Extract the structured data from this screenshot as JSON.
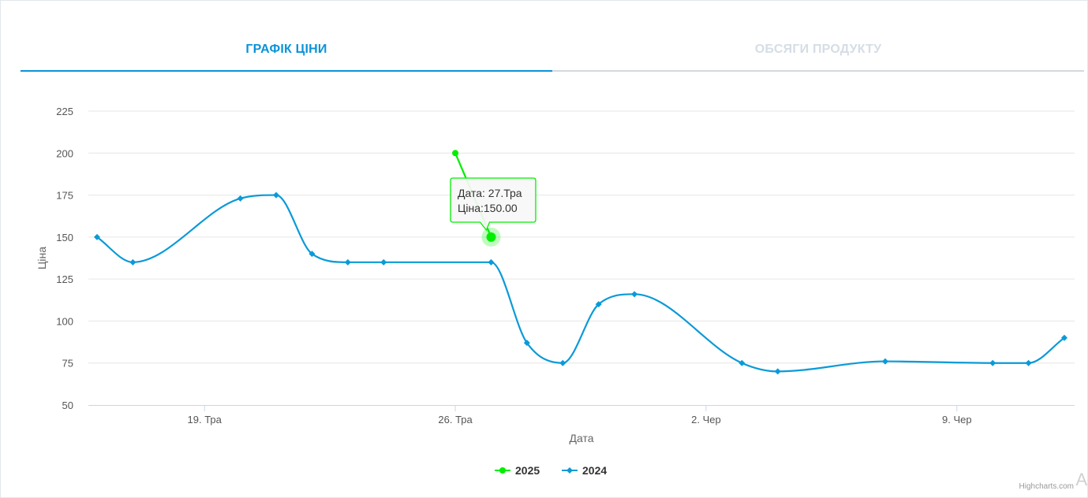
{
  "tabs": [
    {
      "label": "ГРАФІК ЦІНИ",
      "active": true
    },
    {
      "label": "ОБСЯГИ ПРОДУКТУ",
      "active": false
    }
  ],
  "credits": "Highcharts.com",
  "corner_text": "Ai",
  "chart_data": {
    "type": "line",
    "title": "",
    "xlabel": "Дата",
    "ylabel": "Ціна",
    "ylim": [
      50,
      225
    ],
    "yticks": [
      50,
      75,
      100,
      125,
      150,
      175,
      200,
      225
    ],
    "xlim": [
      "2024-05-16",
      "2024-06-12"
    ],
    "xticks": [
      {
        "date": "2024-05-19",
        "label": "19. Тра"
      },
      {
        "date": "2024-05-26",
        "label": "26. Тра"
      },
      {
        "date": "2024-06-02",
        "label": "2. Чер"
      },
      {
        "date": "2024-06-09",
        "label": "9. Чер"
      }
    ],
    "grid": true,
    "legend_position": "bottom-center",
    "series": [
      {
        "name": "2025",
        "color": "#00ee00",
        "marker": "circle",
        "points": [
          {
            "x": "2024-05-26",
            "y": 200
          },
          {
            "x": "2024-05-27",
            "y": 150
          }
        ]
      },
      {
        "name": "2024",
        "color": "#0a9ad8",
        "marker": "diamond",
        "points": [
          {
            "x": "2024-05-16",
            "y": 150
          },
          {
            "x": "2024-05-17",
            "y": 135
          },
          {
            "x": "2024-05-20",
            "y": 173
          },
          {
            "x": "2024-05-21",
            "y": 175
          },
          {
            "x": "2024-05-22",
            "y": 140
          },
          {
            "x": "2024-05-23",
            "y": 135
          },
          {
            "x": "2024-05-24",
            "y": 135
          },
          {
            "x": "2024-05-27",
            "y": 135
          },
          {
            "x": "2024-05-28",
            "y": 87
          },
          {
            "x": "2024-05-29",
            "y": 75
          },
          {
            "x": "2024-05-30",
            "y": 110
          },
          {
            "x": "2024-05-31",
            "y": 116
          },
          {
            "x": "2024-06-03",
            "y": 75
          },
          {
            "x": "2024-06-04",
            "y": 70
          },
          {
            "x": "2024-06-07",
            "y": 76
          },
          {
            "x": "2024-06-10",
            "y": 75
          },
          {
            "x": "2024-06-11",
            "y": 75
          },
          {
            "x": "2024-06-12",
            "y": 90
          }
        ]
      }
    ],
    "tooltip": {
      "series": "2025",
      "x": "2024-05-27",
      "y": 150,
      "line1": "Дата: 27.Тра",
      "line2": "Ціна:150.00"
    }
  }
}
